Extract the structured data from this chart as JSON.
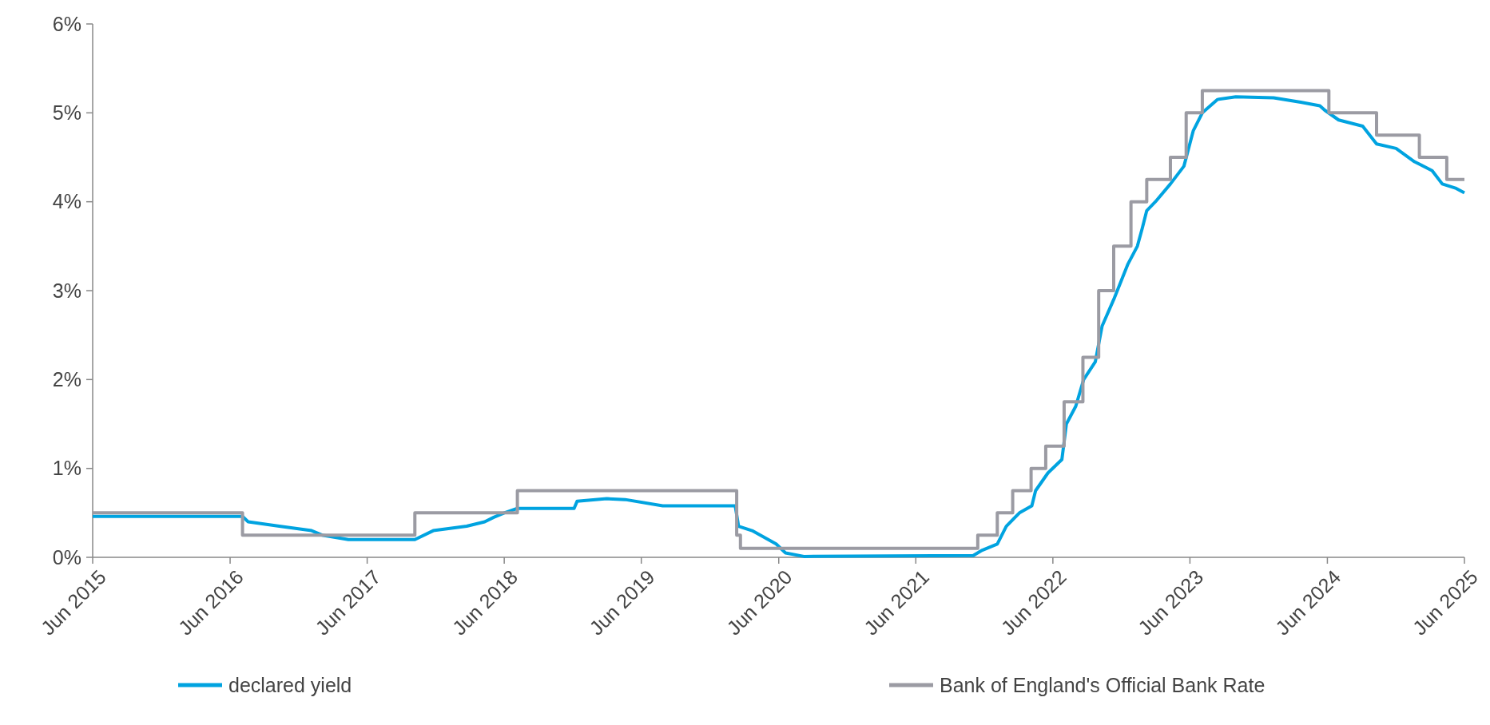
{
  "chart_data": {
    "type": "line",
    "xlim": [
      "2015-06-01",
      "2025-06-01"
    ],
    "ylim": [
      0,
      6
    ],
    "xticks": [
      {
        "value": "2015-06-01",
        "label": "Jun 2015"
      },
      {
        "value": "2016-06-01",
        "label": "Jun 2016"
      },
      {
        "value": "2017-06-01",
        "label": "Jun 2017"
      },
      {
        "value": "2018-06-01",
        "label": "Jun 2018"
      },
      {
        "value": "2019-06-01",
        "label": "Jun 2019"
      },
      {
        "value": "2020-06-01",
        "label": "Jun 2020"
      },
      {
        "value": "2021-06-01",
        "label": "Jun 2021"
      },
      {
        "value": "2022-06-01",
        "label": "Jun 2022"
      },
      {
        "value": "2023-06-01",
        "label": "Jun 2023"
      },
      {
        "value": "2024-06-01",
        "label": "Jun 2024"
      },
      {
        "value": "2025-06-01",
        "label": "Jun 2025"
      }
    ],
    "yticks": [
      {
        "value": 0,
        "label": "0%"
      },
      {
        "value": 1,
        "label": "1%"
      },
      {
        "value": 2,
        "label": "2%"
      },
      {
        "value": 3,
        "label": "3%"
      },
      {
        "value": 4,
        "label": "4%"
      },
      {
        "value": 5,
        "label": "5%"
      },
      {
        "value": 6,
        "label": "6%"
      }
    ],
    "grid": false,
    "legend": "bottom",
    "marker": "none",
    "line_style": "solid",
    "series": [
      {
        "name": "declared yield",
        "color": "#00a3e0",
        "type": "line",
        "x": [
          "2015-06-01",
          "2016-07-04",
          "2016-07-19",
          "2016-10-10",
          "2017-01-04",
          "2017-02-01",
          "2017-04-12",
          "2017-10-06",
          "2017-11-24",
          "2018-02-21",
          "2018-04-10",
          "2018-05-04",
          "2018-06-01",
          "2018-07-06",
          "2018-12-04",
          "2018-12-12",
          "2019-03-01",
          "2019-04-19",
          "2019-07-28",
          "2019-11-06",
          "2020-02-06",
          "2020-02-15",
          "2020-03-22",
          "2020-05-25",
          "2020-06-19",
          "2020-08-07",
          "2021-11-01",
          "2021-11-25",
          "2022-01-04",
          "2022-01-28",
          "2022-03-04",
          "2022-04-06",
          "2022-04-16",
          "2022-05-19",
          "2022-06-25",
          "2022-07-07",
          "2022-08-01",
          "2022-08-22",
          "2022-09-22",
          "2022-10-10",
          "2022-11-10",
          "2022-12-18",
          "2023-01-12",
          "2023-01-25",
          "2023-02-06",
          "2023-03-01",
          "2023-04-10",
          "2023-05-16",
          "2023-06-10",
          "2023-07-04",
          "2023-08-13",
          "2023-10-01",
          "2024-01-10",
          "2024-03-22",
          "2024-05-12",
          "2024-05-25",
          "2024-07-01",
          "2024-09-03",
          "2024-10-10",
          "2024-12-01",
          "2025-01-19",
          "2025-03-07",
          "2025-04-03",
          "2025-05-10",
          "2025-06-01"
        ],
        "values": [
          0.46,
          0.46,
          0.4,
          0.35,
          0.3,
          0.25,
          0.2,
          0.2,
          0.3,
          0.35,
          0.4,
          0.45,
          0.5,
          0.55,
          0.55,
          0.63,
          0.66,
          0.65,
          0.58,
          0.58,
          0.58,
          0.35,
          0.3,
          0.15,
          0.05,
          0.01,
          0.02,
          0.08,
          0.15,
          0.35,
          0.5,
          0.58,
          0.75,
          0.95,
          1.1,
          1.5,
          1.7,
          2.0,
          2.2,
          2.6,
          2.9,
          3.3,
          3.5,
          3.7,
          3.9,
          4.0,
          4.2,
          4.4,
          4.8,
          5.0,
          5.15,
          5.18,
          5.17,
          5.12,
          5.08,
          5.03,
          4.92,
          4.85,
          4.65,
          4.6,
          4.45,
          4.35,
          4.2,
          4.15,
          4.1
        ]
      },
      {
        "name": "Bank of England's Official Bank Rate",
        "color": "#9b9ba3",
        "type": "step",
        "x": [
          "2015-06-01",
          "2016-07-04",
          "2017-10-06",
          "2018-07-06",
          "2020-02-10",
          "2020-02-20",
          "2021-11-13",
          "2022-01-04",
          "2022-02-14",
          "2022-04-04",
          "2022-05-13",
          "2022-07-01",
          "2022-08-20",
          "2022-10-01",
          "2022-11-10",
          "2022-12-26",
          "2023-02-06",
          "2023-04-10",
          "2023-05-22",
          "2023-07-04",
          "2024-06-05",
          "2024-10-10",
          "2025-02-01",
          "2025-04-15",
          "2025-06-01"
        ],
        "values": [
          0.5,
          0.25,
          0.5,
          0.75,
          0.25,
          0.1,
          0.25,
          0.5,
          0.75,
          1.0,
          1.25,
          1.75,
          2.25,
          3.0,
          3.5,
          4.0,
          4.25,
          4.5,
          5.0,
          5.25,
          5.0,
          4.75,
          4.5,
          4.25,
          4.25
        ]
      }
    ]
  }
}
